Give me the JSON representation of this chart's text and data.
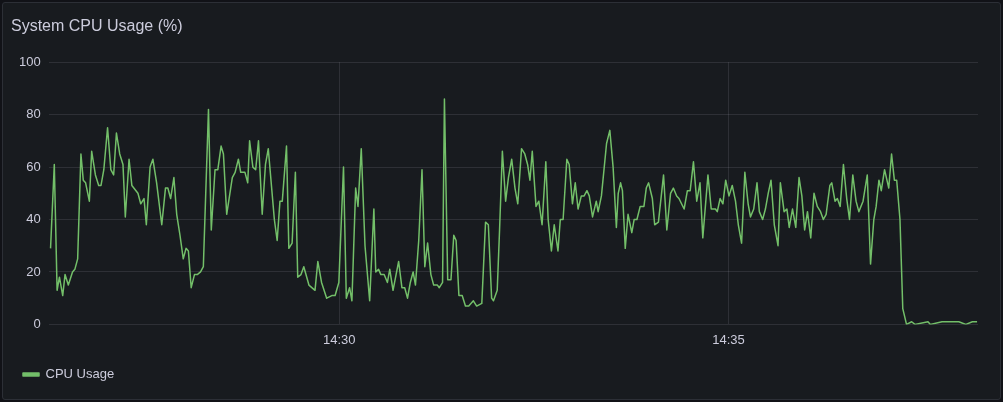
{
  "chart_data": {
    "type": "line",
    "title": "System CPU Usage (%)",
    "xlim": [
      14.4378,
      14.6367
    ],
    "xticks": [
      {
        "value": 14.5,
        "label": "14:30"
      },
      {
        "value": 14.5833,
        "label": "14:35"
      }
    ],
    "ylim": [
      0,
      100
    ],
    "yticks": [
      0,
      20,
      40,
      60,
      80,
      100
    ],
    "grid": true,
    "legend": "bottom left",
    "marker": "none",
    "line_style": "solid",
    "series": [
      {
        "name": "CPU Usage",
        "color": "#73bf69",
        "x": [
          14.4382,
          14.439,
          14.4396,
          14.4401,
          14.4408,
          14.4413,
          14.442,
          14.4429,
          14.4434,
          14.444,
          14.4447,
          14.4452,
          14.4457,
          14.4465,
          14.447,
          14.4478,
          14.4485,
          14.449,
          14.4496,
          14.4504,
          14.4511,
          14.4517,
          14.4523,
          14.453,
          14.4537,
          14.4542,
          14.455,
          14.4556,
          14.4569,
          14.4575,
          14.4582,
          14.4587,
          14.4595,
          14.4601,
          14.4609,
          14.462,
          14.4628,
          14.4633,
          14.4639,
          14.4646,
          14.4652,
          14.4659,
          14.4666,
          14.4672,
          14.4677,
          14.4683,
          14.469,
          14.4696,
          14.4703,
          14.4709,
          14.472,
          14.4726,
          14.4734,
          14.474,
          14.4747,
          14.4752,
          14.4759,
          14.4771,
          14.4777,
          14.4784,
          14.4789,
          14.4798,
          14.4804,
          14.4808,
          14.4815,
          14.4821,
          14.4827,
          14.4835,
          14.4842,
          14.4848,
          14.4861,
          14.4867,
          14.4873,
          14.4878,
          14.4887,
          14.4892,
          14.4899,
          14.4906,
          14.4911,
          14.4918,
          14.4924,
          14.4935,
          14.4948,
          14.4954,
          14.4962,
          14.4973,
          14.4984,
          14.4991,
          14.4999,
          14.5009,
          14.5015,
          14.5022,
          14.5027,
          14.5035,
          14.504,
          14.5047,
          14.5055,
          14.5065,
          14.5074,
          14.5078,
          14.5084,
          14.5089,
          14.5096,
          14.5103,
          14.5108,
          14.5115,
          14.5127,
          14.5134,
          14.514,
          14.5146,
          14.5152,
          14.5158,
          14.5163,
          14.517,
          14.5177,
          14.5183,
          14.5189,
          14.5196,
          14.5202,
          14.521,
          14.5214,
          14.5221,
          14.5225,
          14.5232,
          14.5239,
          14.5245,
          14.525,
          14.5256,
          14.5263,
          14.527,
          14.5277,
          14.5287,
          14.5294,
          14.5305,
          14.5313,
          14.5319,
          14.5326,
          14.533,
          14.5338,
          14.5343,
          14.5349,
          14.5356,
          14.5362,
          14.5369,
          14.5376,
          14.5382,
          14.539,
          14.5397,
          14.5403,
          14.5408,
          14.5413,
          14.5421,
          14.5427,
          14.5434,
          14.5442,
          14.5447,
          14.5454,
          14.546,
          14.5468,
          14.5473,
          14.5479,
          14.5487,
          14.5492,
          14.5499,
          14.5505,
          14.5511,
          14.5518,
          14.5524,
          14.553,
          14.5535,
          14.5542,
          14.555,
          14.5554,
          14.5561,
          14.5572,
          14.5579,
          14.5586,
          14.5593,
          14.5597,
          14.5602,
          14.5606,
          14.5612,
          14.5618,
          14.5626,
          14.5631,
          14.5637,
          14.5644,
          14.5652,
          14.5657,
          14.5662,
          14.567,
          14.5675,
          14.5683,
          14.5694,
          14.5701,
          14.5709,
          14.5715,
          14.5722,
          14.5727,
          14.5738,
          14.5745,
          14.5751,
          14.5758,
          14.5765,
          14.5772,
          14.5778,
          14.5789,
          14.5796,
          14.5805,
          14.5809,
          14.5815,
          14.5821,
          14.5827,
          14.5834,
          14.5841,
          14.5848,
          14.5854,
          14.5861,
          14.5868,
          14.5875,
          14.588,
          14.5887,
          14.5894,
          14.5899,
          14.5906,
          14.5912,
          14.5918,
          14.5924,
          14.5931,
          14.5939,
          14.5944,
          14.5952,
          14.5958,
          14.5963,
          14.597,
          14.5977,
          14.5984,
          14.599,
          14.5996,
          14.6002,
          14.6009,
          14.6016,
          14.6023,
          14.603,
          14.6036,
          14.6042,
          14.605,
          14.6054,
          14.6061,
          14.6066,
          14.6072,
          14.6079,
          14.6086,
          14.6092,
          14.6099,
          14.6106,
          14.6112,
          14.6121,
          14.613,
          14.6137,
          14.6144,
          14.6149,
          14.6155,
          14.616,
          14.6167,
          14.6176,
          14.6182,
          14.6188,
          14.6193,
          14.62,
          14.6206,
          14.6214,
          14.6225,
          14.6232,
          14.626,
          14.6265,
          14.629,
          14.6304,
          14.6326,
          14.6341,
          14.6355,
          14.6365
        ],
        "values": [
          29,
          61,
          13,
          18,
          11,
          19,
          15,
          20,
          21,
          25,
          65,
          55,
          54,
          47,
          66,
          57,
          53,
          53,
          59,
          75,
          59,
          57,
          73,
          65,
          61,
          41,
          63,
          53,
          50,
          46,
          48,
          38,
          60,
          63,
          54,
          38,
          52,
          52,
          48,
          56,
          42,
          34,
          25,
          29,
          28,
          14,
          19,
          19,
          20,
          22,
          82,
          36,
          59,
          59,
          68,
          65,
          42,
          56,
          58,
          63,
          58,
          58,
          54,
          70,
          60,
          59,
          70,
          42,
          61,
          67,
          40,
          32,
          47,
          47,
          68,
          29,
          31,
          58,
          18,
          19,
          22,
          15,
          13,
          24,
          16,
          10,
          11,
          11,
          16,
          60,
          10,
          14,
          9,
          52,
          45,
          67,
          30,
          9,
          44,
          20,
          21,
          19,
          19,
          16,
          21,
          13,
          24,
          14,
          14,
          10,
          16,
          20,
          15,
          32,
          59,
          22,
          31,
          19,
          15,
          15,
          14,
          16,
          86,
          17,
          17,
          34,
          32,
          11,
          11,
          7,
          7,
          9,
          7,
          8,
          39,
          38,
          10,
          9,
          13,
          36,
          66,
          47,
          56,
          63,
          52,
          46,
          67,
          65,
          61,
          55,
          66,
          45,
          47,
          38,
          62,
          40,
          28,
          38,
          28,
          40,
          40,
          63,
          61,
          46,
          54,
          44,
          49,
          49,
          51,
          49,
          41,
          47,
          43,
          49,
          69,
          74,
          60,
          37,
          50,
          54,
          51,
          29,
          42,
          35,
          40,
          40,
          45,
          45,
          52,
          54,
          48,
          38,
          39,
          57,
          36,
          50,
          52,
          49,
          48,
          44,
          51,
          51,
          62,
          47,
          54,
          33,
          57,
          44,
          44,
          43,
          48,
          46,
          55,
          49,
          53,
          47,
          38,
          31,
          58,
          46,
          41,
          44,
          54,
          43,
          40,
          44,
          50,
          55,
          38,
          30,
          54,
          43,
          44,
          37,
          44,
          37,
          56,
          49,
          36,
          43,
          33,
          50,
          45,
          43,
          40,
          42,
          53,
          54,
          47,
          48,
          45,
          61,
          48,
          40,
          57,
          47,
          43,
          47,
          57,
          23,
          40,
          45,
          55,
          51,
          59,
          52,
          65,
          55,
          55,
          40,
          6,
          0,
          1,
          0,
          1,
          0,
          1,
          1,
          1,
          0,
          1,
          1
        ]
      }
    ]
  }
}
